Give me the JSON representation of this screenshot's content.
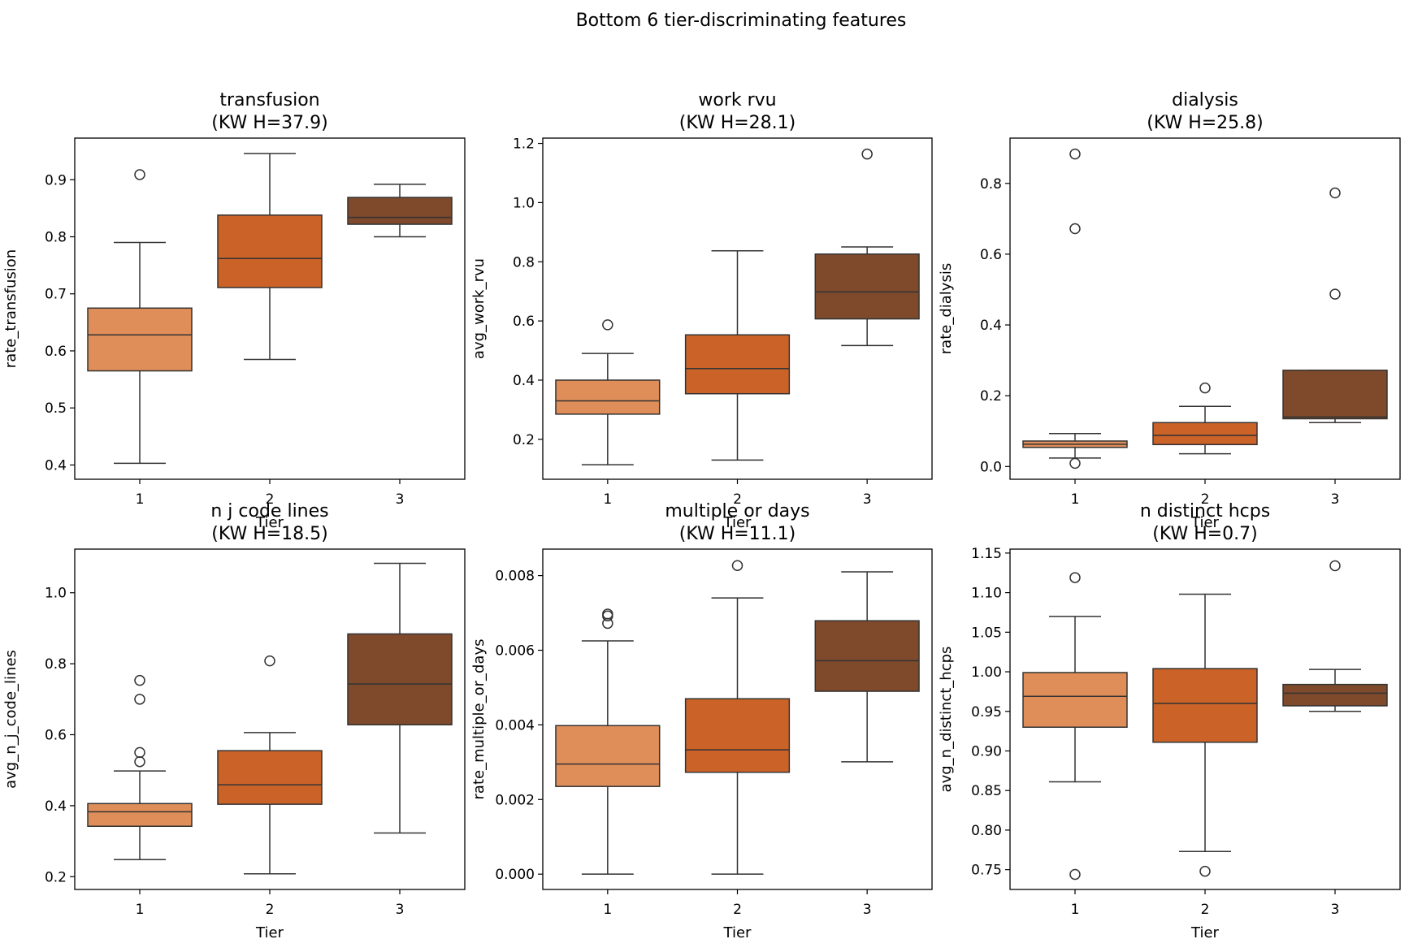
{
  "suptitle": "Bottom 6 tier-discriminating features",
  "colors": {
    "tier1": "#E08E59",
    "tier2": "#CB6329",
    "tier3": "#7F4A2C",
    "edge": "#333333"
  },
  "chart_data": [
    {
      "type": "box",
      "title": "transfusion",
      "subtitle": "(KW H=37.9)",
      "xlabel": "Tier",
      "ylabel": "rate_transfusion",
      "categories": [
        "1",
        "2",
        "3"
      ],
      "ylim": [
        0.375,
        0.973
      ],
      "yticks": [
        0.4,
        0.5,
        0.6,
        0.7,
        0.8,
        0.9
      ],
      "ytick_labels": [
        "0.4",
        "0.5",
        "0.6",
        "0.7",
        "0.8",
        "0.9"
      ],
      "boxes": [
        {
          "whislo": 0.403,
          "q1": 0.565,
          "med": 0.628,
          "q3": 0.675,
          "whishi": 0.79,
          "fliers": [
            0.909
          ]
        },
        {
          "whislo": 0.585,
          "q1": 0.711,
          "med": 0.762,
          "q3": 0.838,
          "whishi": 0.946,
          "fliers": []
        },
        {
          "whislo": 0.8,
          "q1": 0.822,
          "med": 0.834,
          "q3": 0.869,
          "whishi": 0.892,
          "fliers": []
        }
      ]
    },
    {
      "type": "box",
      "title": "work rvu",
      "subtitle": "(KW H=28.1)",
      "xlabel": "Tier",
      "ylabel": "avg_work_rvu",
      "categories": [
        "1",
        "2",
        "3"
      ],
      "ylim": [
        0.065,
        1.218
      ],
      "yticks": [
        0.2,
        0.4,
        0.6,
        0.8,
        1.0,
        1.2
      ],
      "ytick_labels": [
        "0.2",
        "0.4",
        "0.6",
        "0.8",
        "1.0",
        "1.2"
      ],
      "boxes": [
        {
          "whislo": 0.114,
          "q1": 0.285,
          "med": 0.33,
          "q3": 0.4,
          "whishi": 0.49,
          "fliers": [
            0.587
          ]
        },
        {
          "whislo": 0.13,
          "q1": 0.354,
          "med": 0.439,
          "q3": 0.553,
          "whishi": 0.837,
          "fliers": []
        },
        {
          "whislo": 0.517,
          "q1": 0.607,
          "med": 0.698,
          "q3": 0.826,
          "whishi": 0.85,
          "fliers": [
            1.164
          ]
        }
      ]
    },
    {
      "type": "box",
      "title": "dialysis",
      "subtitle": "(KW H=25.8)",
      "xlabel": "Tier",
      "ylabel": "rate_dialysis",
      "categories": [
        "1",
        "2",
        "3"
      ],
      "ylim": [
        -0.036,
        0.928
      ],
      "yticks": [
        0.0,
        0.2,
        0.4,
        0.6,
        0.8
      ],
      "ytick_labels": [
        "0.0",
        "0.2",
        "0.4",
        "0.6",
        "0.8"
      ],
      "boxes": [
        {
          "whislo": 0.024,
          "q1": 0.054,
          "med": 0.063,
          "q3": 0.072,
          "whishi": 0.093,
          "fliers": [
            0.009,
            0.672,
            0.883
          ]
        },
        {
          "whislo": 0.036,
          "q1": 0.062,
          "med": 0.088,
          "q3": 0.124,
          "whishi": 0.17,
          "fliers": [
            0.222
          ]
        },
        {
          "whislo": 0.124,
          "q1": 0.135,
          "med": 0.14,
          "q3": 0.272,
          "whishi": 0.272,
          "fliers": [
            0.487,
            0.773
          ]
        }
      ]
    },
    {
      "type": "box",
      "title": "n j code lines",
      "subtitle": "(KW H=18.5)",
      "xlabel": "Tier",
      "ylabel": "avg_n_j_code_lines",
      "categories": [
        "1",
        "2",
        "3"
      ],
      "ylim": [
        0.164,
        1.123
      ],
      "yticks": [
        0.2,
        0.4,
        0.6,
        0.8,
        1.0
      ],
      "ytick_labels": [
        "0.2",
        "0.4",
        "0.6",
        "0.8",
        "1.0"
      ],
      "boxes": [
        {
          "whislo": 0.248,
          "q1": 0.342,
          "med": 0.383,
          "q3": 0.406,
          "whishi": 0.498,
          "fliers": [
            0.524,
            0.55,
            0.7,
            0.753
          ]
        },
        {
          "whislo": 0.208,
          "q1": 0.404,
          "med": 0.459,
          "q3": 0.555,
          "whishi": 0.606,
          "fliers": [
            0.808
          ]
        },
        {
          "whislo": 0.323,
          "q1": 0.628,
          "med": 0.743,
          "q3": 0.884,
          "whishi": 1.083,
          "fliers": []
        }
      ]
    },
    {
      "type": "box",
      "title": "multiple or days",
      "subtitle": "(KW H=11.1)",
      "xlabel": "Tier",
      "ylabel": "rate_multiple_or_days",
      "categories": [
        "1",
        "2",
        "3"
      ],
      "ylim": [
        -0.00041,
        0.00871
      ],
      "yticks": [
        0.0,
        0.002,
        0.004,
        0.006,
        0.008
      ],
      "ytick_labels": [
        "0.000",
        "0.002",
        "0.004",
        "0.006",
        "0.008"
      ],
      "boxes": [
        {
          "whislo": 0.0,
          "q1": 0.00235,
          "med": 0.00295,
          "q3": 0.00398,
          "whishi": 0.00625,
          "fliers": [
            0.00672,
            0.00692,
            0.00697
          ]
        },
        {
          "whislo": 0.0,
          "q1": 0.00273,
          "med": 0.00333,
          "q3": 0.0047,
          "whishi": 0.0074,
          "fliers": [
            0.00827
          ]
        },
        {
          "whislo": 0.00301,
          "q1": 0.0049,
          "med": 0.00572,
          "q3": 0.00679,
          "whishi": 0.0081,
          "fliers": []
        }
      ]
    },
    {
      "type": "box",
      "title": "n distinct hcps",
      "subtitle": "(KW H=0.7)",
      "xlabel": "Tier",
      "ylabel": "avg_n_distinct_hcps",
      "categories": [
        "1",
        "2",
        "3"
      ],
      "ylim": [
        0.725,
        1.155
      ],
      "yticks": [
        0.75,
        0.8,
        0.85,
        0.9,
        0.95,
        1.0,
        1.05,
        1.1,
        1.15
      ],
      "ytick_labels": [
        "0.75",
        "0.80",
        "0.85",
        "0.90",
        "0.95",
        "1.00",
        "1.05",
        "1.10",
        "1.15"
      ],
      "boxes": [
        {
          "whislo": 0.861,
          "q1": 0.93,
          "med": 0.969,
          "q3": 0.999,
          "whishi": 1.07,
          "fliers": [
            0.744,
            1.119
          ]
        },
        {
          "whislo": 0.773,
          "q1": 0.911,
          "med": 0.96,
          "q3": 1.004,
          "whishi": 1.098,
          "fliers": [
            0.748
          ]
        },
        {
          "whislo": 0.95,
          "q1": 0.957,
          "med": 0.973,
          "q3": 0.984,
          "whishi": 1.003,
          "fliers": [
            1.134
          ]
        }
      ]
    }
  ]
}
